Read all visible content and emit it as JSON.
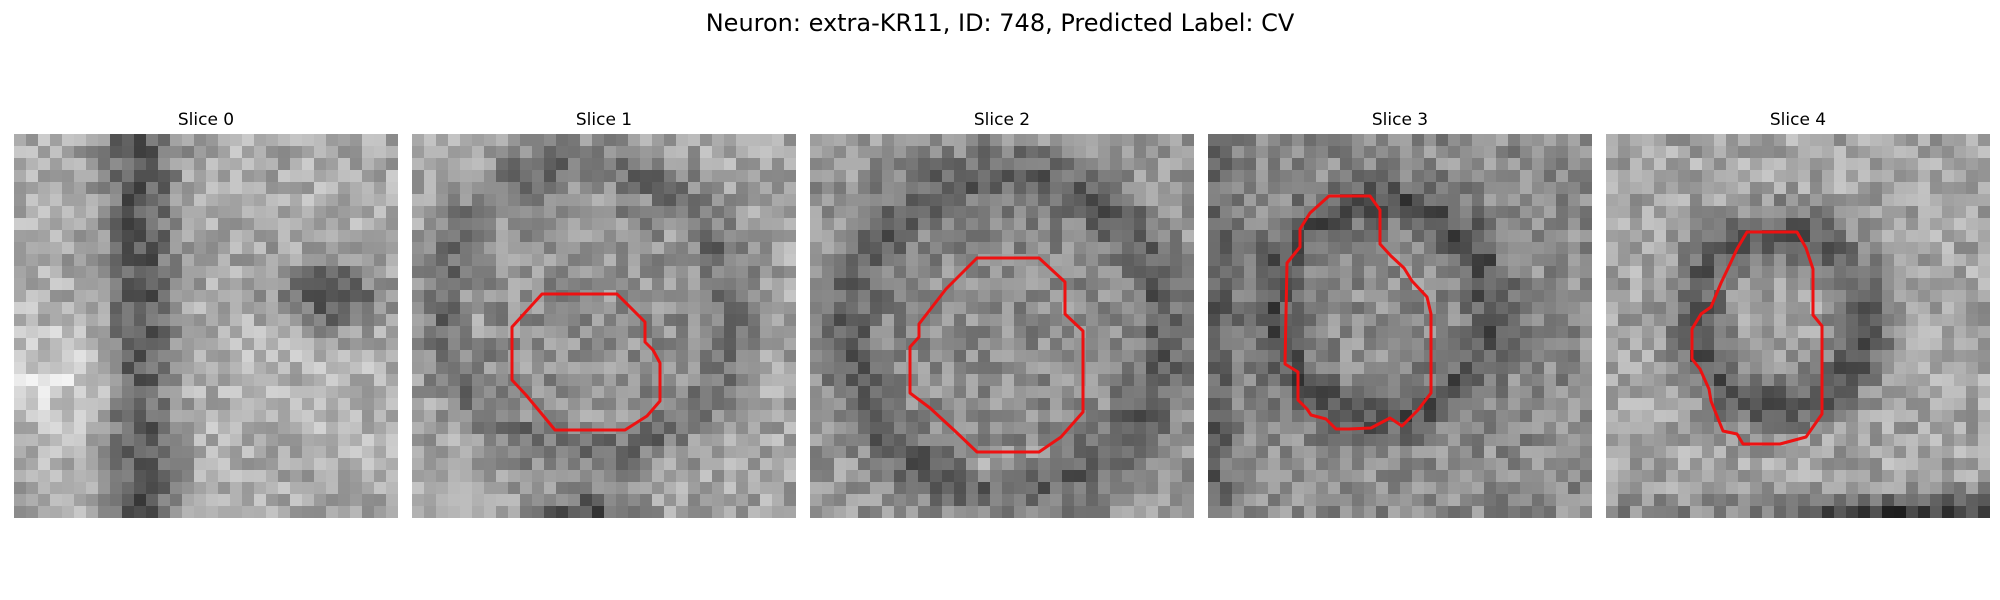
{
  "figure": {
    "title": "Neuron: extra-KR11, ID: 748, Predicted Label: CV"
  },
  "panels": [
    {
      "label": "Slice 0",
      "has_contour": false
    },
    {
      "label": "Slice 1",
      "has_contour": true
    },
    {
      "label": "Slice 2",
      "has_contour": true
    },
    {
      "label": "Slice 3",
      "has_contour": true
    },
    {
      "label": "Slice 4",
      "has_contour": true
    }
  ],
  "style": {
    "contour_color": "#ee1111",
    "colormap": "gray"
  }
}
